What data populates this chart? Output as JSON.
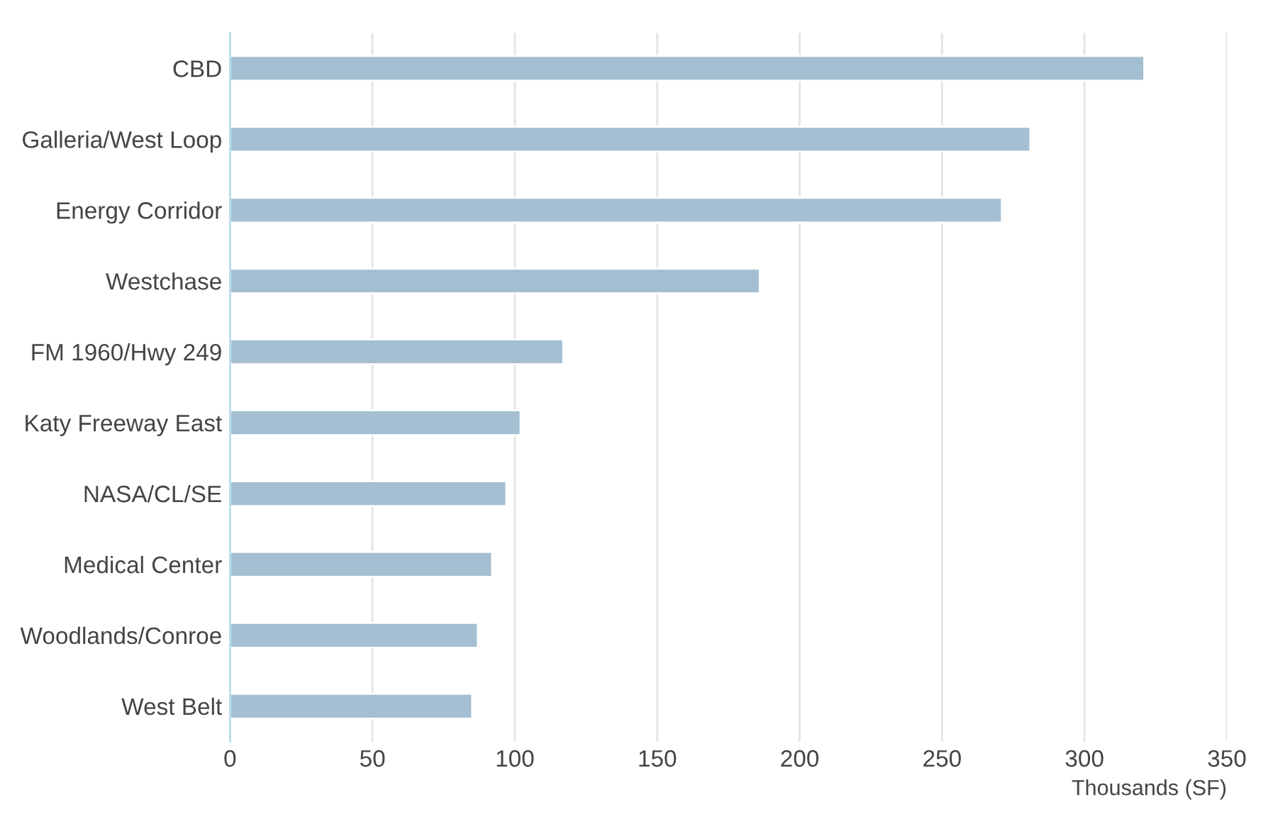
{
  "chart_data": {
    "type": "bar",
    "orientation": "horizontal",
    "xlabel": "Thousands (SF)",
    "categories": [
      "CBD",
      "Galleria/West Loop",
      "Energy Corridor",
      "Westchase",
      "FM 1960/Hwy 249",
      "Katy Freeway East",
      "NASA/CL/SE",
      "Medical Center",
      "Woodlands/Conroe",
      "West Belt"
    ],
    "values": [
      321,
      281,
      271,
      186,
      117,
      102,
      97,
      92,
      87,
      85
    ],
    "color": "#a3bfd1",
    "xlim": [
      0,
      350
    ],
    "xticks": [
      0,
      50,
      100,
      150,
      200,
      250,
      300,
      350
    ],
    "grid": "x"
  }
}
